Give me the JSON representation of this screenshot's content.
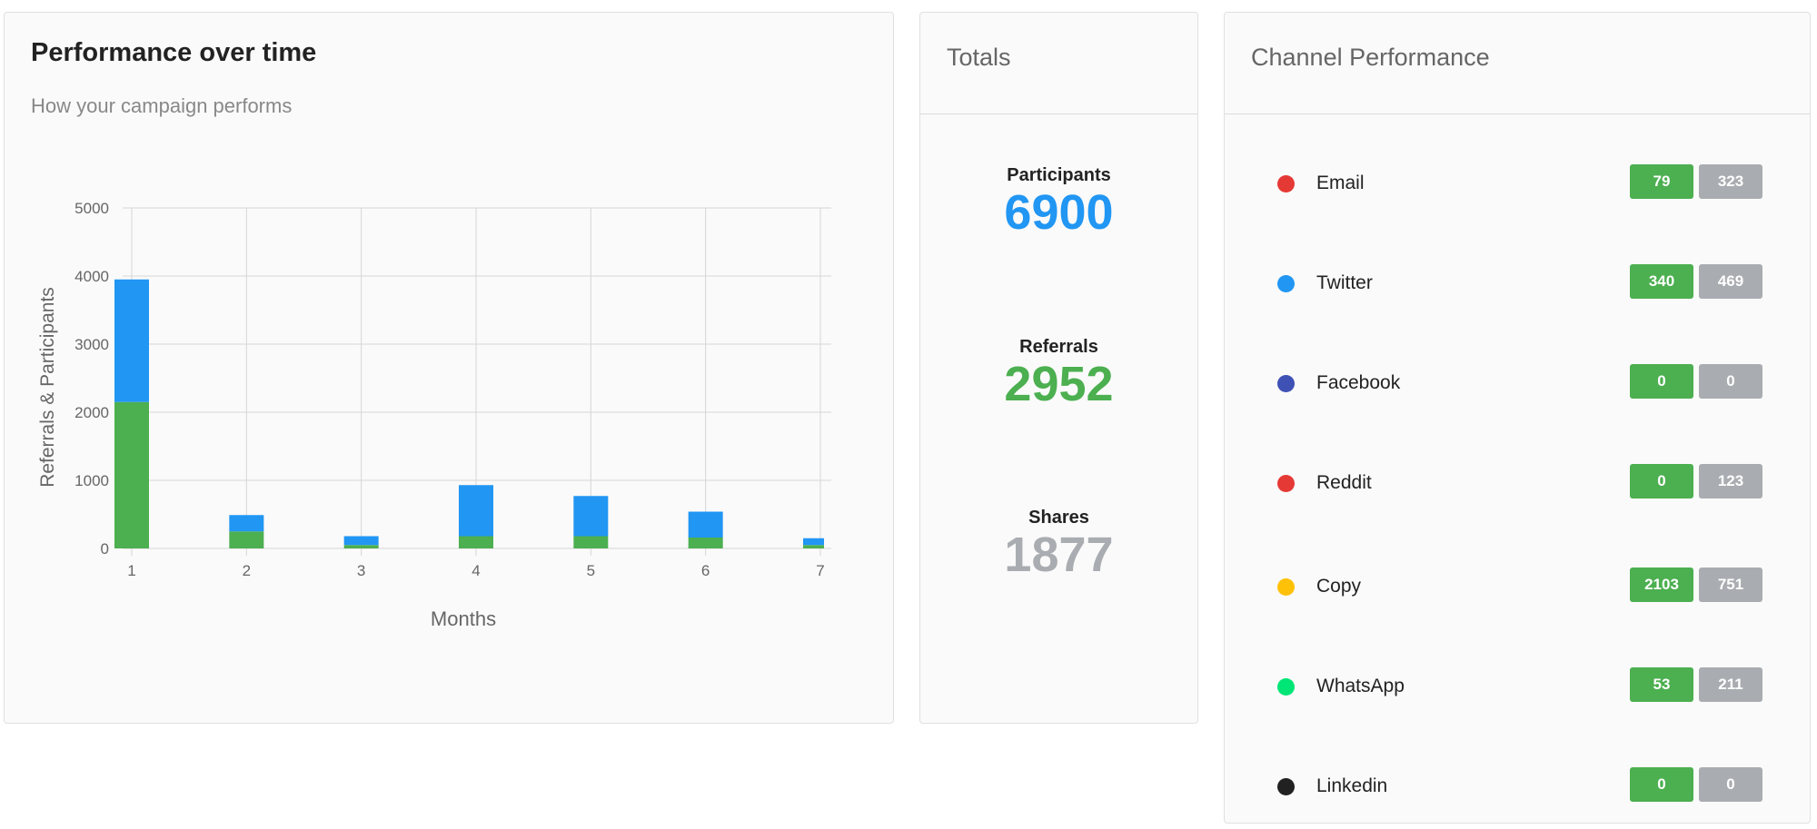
{
  "performance": {
    "title": "Performance over time",
    "subtitle": "How your campaign performs"
  },
  "chart_data": {
    "type": "bar",
    "stacked": true,
    "categories": [
      "1",
      "2",
      "3",
      "4",
      "5",
      "6",
      "7"
    ],
    "series": [
      {
        "color": "#4caf50",
        "values": [
          2150,
          250,
          50,
          180,
          180,
          160,
          50
        ]
      },
      {
        "color": "#2196f3",
        "values": [
          1800,
          240,
          130,
          750,
          590,
          380,
          100
        ]
      }
    ],
    "xlabel": "Months",
    "ylabel": "Referrals & Participants",
    "ylim": [
      0,
      5000
    ],
    "yticks": [
      0,
      1000,
      2000,
      3000,
      4000,
      5000
    ],
    "grid": true
  },
  "totals": {
    "title": "Totals",
    "participants_label": "Participants",
    "participants_value": "6900",
    "participants_color": "#2196f3",
    "referrals_label": "Referrals",
    "referrals_value": "2952",
    "referrals_color": "#4caf50",
    "shares_label": "Shares",
    "shares_value": "1877",
    "shares_color": "#a9acb0"
  },
  "channels": {
    "title": "Channel Performance",
    "items": [
      {
        "name": "Email",
        "color": "#e53935",
        "green": "79",
        "gray": "323"
      },
      {
        "name": "Twitter",
        "color": "#2196f3",
        "green": "340",
        "gray": "469"
      },
      {
        "name": "Facebook",
        "color": "#3f51b5",
        "green": "0",
        "gray": "0"
      },
      {
        "name": "Reddit",
        "color": "#e53935",
        "green": "0",
        "gray": "123"
      },
      {
        "name": "Copy",
        "color": "#ffc107",
        "green": "2103",
        "gray": "751"
      },
      {
        "name": "WhatsApp",
        "color": "#00e676",
        "green": "53",
        "gray": "211"
      },
      {
        "name": "Linkedin",
        "color": "#212121",
        "green": "0",
        "gray": "0"
      }
    ]
  }
}
